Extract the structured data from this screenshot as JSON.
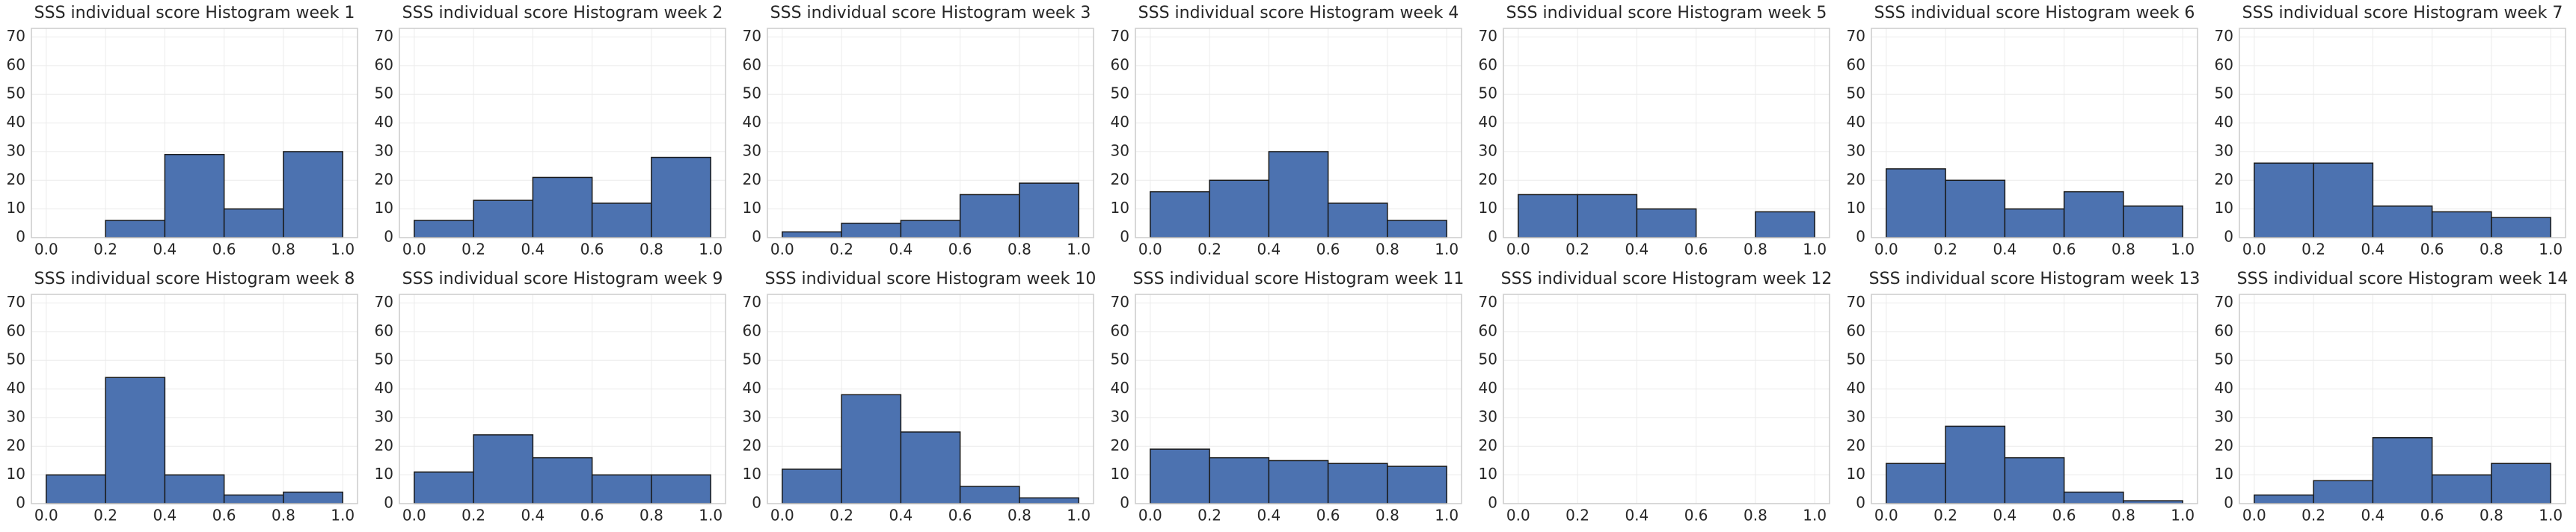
{
  "chart_data": [
    {
      "type": "histogram",
      "title": "SSS individual score Histogram week 1",
      "bins": [
        0,
        0.2,
        0.4,
        0.6,
        0.8,
        1
      ],
      "values": [
        0,
        6,
        29,
        10,
        30
      ],
      "color": "#4c72b0",
      "xlim": [
        -0.05,
        1.05
      ],
      "ylim": [
        0,
        73
      ],
      "xticks": [
        {
          "value": 0,
          "label": "0.0"
        },
        0.2,
        0.4,
        0.6,
        0.8,
        {
          "value": 1,
          "label": "1.0"
        }
      ],
      "yticks": [
        0,
        10,
        20,
        30,
        40,
        50,
        60,
        70
      ],
      "grid": true
    },
    {
      "type": "histogram",
      "title": "SSS individual score Histogram week 2",
      "bins": [
        0,
        0.2,
        0.4,
        0.6,
        0.8,
        1
      ],
      "values": [
        6,
        13,
        21,
        12,
        28
      ],
      "color": "#4c72b0",
      "xlim": [
        -0.05,
        1.05
      ],
      "ylim": [
        0,
        73
      ],
      "xticks": [
        {
          "value": 0,
          "label": "0.0"
        },
        0.2,
        0.4,
        0.6,
        0.8,
        {
          "value": 1,
          "label": "1.0"
        }
      ],
      "yticks": [
        0,
        10,
        20,
        30,
        40,
        50,
        60,
        70
      ],
      "grid": true
    },
    {
      "type": "histogram",
      "title": "SSS individual score Histogram week 3",
      "bins": [
        0,
        0.2,
        0.4,
        0.6,
        0.8,
        1
      ],
      "values": [
        2,
        5,
        6,
        15,
        19
      ],
      "color": "#4c72b0",
      "xlim": [
        -0.05,
        1.05
      ],
      "ylim": [
        0,
        73
      ],
      "xticks": [
        {
          "value": 0,
          "label": "0.0"
        },
        0.2,
        0.4,
        0.6,
        0.8,
        {
          "value": 1,
          "label": "1.0"
        }
      ],
      "yticks": [
        0,
        10,
        20,
        30,
        40,
        50,
        60,
        70
      ],
      "grid": true
    },
    {
      "type": "histogram",
      "title": "SSS individual score Histogram week 4",
      "bins": [
        0,
        0.2,
        0.4,
        0.6,
        0.8,
        1
      ],
      "values": [
        16,
        20,
        30,
        12,
        6
      ],
      "color": "#4c72b0",
      "xlim": [
        -0.05,
        1.05
      ],
      "ylim": [
        0,
        73
      ],
      "xticks": [
        {
          "value": 0,
          "label": "0.0"
        },
        0.2,
        0.4,
        0.6,
        0.8,
        {
          "value": 1,
          "label": "1.0"
        }
      ],
      "yticks": [
        0,
        10,
        20,
        30,
        40,
        50,
        60,
        70
      ],
      "grid": true
    },
    {
      "type": "histogram",
      "title": "SSS individual score Histogram week 5",
      "bins": [
        0,
        0.2,
        0.4,
        0.6,
        0.8,
        1
      ],
      "values": [
        15,
        15,
        10,
        0,
        9
      ],
      "color": "#4c72b0",
      "xlim": [
        -0.05,
        1.05
      ],
      "ylim": [
        0,
        73
      ],
      "xticks": [
        {
          "value": 0,
          "label": "0.0"
        },
        0.2,
        0.4,
        0.6,
        0.8,
        {
          "value": 1,
          "label": "1.0"
        }
      ],
      "yticks": [
        0,
        10,
        20,
        30,
        40,
        50,
        60,
        70
      ],
      "grid": true
    },
    {
      "type": "histogram",
      "title": "SSS individual score Histogram week 6",
      "bins": [
        0,
        0.2,
        0.4,
        0.6,
        0.8,
        1
      ],
      "values": [
        24,
        20,
        10,
        16,
        11
      ],
      "color": "#4c72b0",
      "xlim": [
        -0.05,
        1.05
      ],
      "ylim": [
        0,
        73
      ],
      "xticks": [
        {
          "value": 0,
          "label": "0.0"
        },
        0.2,
        0.4,
        0.6,
        0.8,
        {
          "value": 1,
          "label": "1.0"
        }
      ],
      "yticks": [
        0,
        10,
        20,
        30,
        40,
        50,
        60,
        70
      ],
      "grid": true
    },
    {
      "type": "histogram",
      "title": "SSS individual score Histogram week 7",
      "bins": [
        0,
        0.2,
        0.4,
        0.6,
        0.8,
        1
      ],
      "values": [
        26,
        26,
        11,
        9,
        7
      ],
      "color": "#4c72b0",
      "xlim": [
        -0.05,
        1.05
      ],
      "ylim": [
        0,
        73
      ],
      "xticks": [
        {
          "value": 0,
          "label": "0.0"
        },
        0.2,
        0.4,
        0.6,
        0.8,
        {
          "value": 1,
          "label": "1.0"
        }
      ],
      "yticks": [
        0,
        10,
        20,
        30,
        40,
        50,
        60,
        70
      ],
      "grid": true
    },
    {
      "type": "histogram",
      "title": "SSS individual score Histogram week 8",
      "bins": [
        0,
        0.2,
        0.4,
        0.6,
        0.8,
        1
      ],
      "values": [
        10,
        44,
        10,
        3,
        4
      ],
      "color": "#4c72b0",
      "xlim": [
        -0.05,
        1.05
      ],
      "ylim": [
        0,
        73
      ],
      "xticks": [
        {
          "value": 0,
          "label": "0.0"
        },
        0.2,
        0.4,
        0.6,
        0.8,
        {
          "value": 1,
          "label": "1.0"
        }
      ],
      "yticks": [
        0,
        10,
        20,
        30,
        40,
        50,
        60,
        70
      ],
      "grid": true
    },
    {
      "type": "histogram",
      "title": "SSS individual score Histogram week 9",
      "bins": [
        0,
        0.2,
        0.4,
        0.6,
        0.8,
        1
      ],
      "values": [
        11,
        24,
        16,
        10,
        10
      ],
      "color": "#4c72b0",
      "xlim": [
        -0.05,
        1.05
      ],
      "ylim": [
        0,
        73
      ],
      "xticks": [
        {
          "value": 0,
          "label": "0.0"
        },
        0.2,
        0.4,
        0.6,
        0.8,
        {
          "value": 1,
          "label": "1.0"
        }
      ],
      "yticks": [
        0,
        10,
        20,
        30,
        40,
        50,
        60,
        70
      ],
      "grid": true
    },
    {
      "type": "histogram",
      "title": "SSS individual score Histogram week 10",
      "bins": [
        0,
        0.2,
        0.4,
        0.6,
        0.8,
        1
      ],
      "values": [
        12,
        38,
        25,
        6,
        2
      ],
      "color": "#4c72b0",
      "xlim": [
        -0.05,
        1.05
      ],
      "ylim": [
        0,
        73
      ],
      "xticks": [
        {
          "value": 0,
          "label": "0.0"
        },
        0.2,
        0.4,
        0.6,
        0.8,
        {
          "value": 1,
          "label": "1.0"
        }
      ],
      "yticks": [
        0,
        10,
        20,
        30,
        40,
        50,
        60,
        70
      ],
      "grid": true
    },
    {
      "type": "histogram",
      "title": "SSS individual score Histogram week 11",
      "bins": [
        0,
        0.2,
        0.4,
        0.6,
        0.8,
        1
      ],
      "values": [
        19,
        16,
        15,
        14,
        13
      ],
      "color": "#4c72b0",
      "xlim": [
        -0.05,
        1.05
      ],
      "ylim": [
        0,
        73
      ],
      "xticks": [
        {
          "value": 0,
          "label": "0.0"
        },
        0.2,
        0.4,
        0.6,
        0.8,
        {
          "value": 1,
          "label": "1.0"
        }
      ],
      "yticks": [
        0,
        10,
        20,
        30,
        40,
        50,
        60,
        70
      ],
      "grid": true
    },
    {
      "type": "histogram",
      "title": "SSS individual score Histogram week 12",
      "bins": [
        0,
        0.2,
        0.4,
        0.6,
        0.8,
        1
      ],
      "values": [
        0,
        0,
        0,
        0,
        0
      ],
      "color": "#4c72b0",
      "xlim": [
        -0.05,
        1.05
      ],
      "ylim": [
        0,
        73
      ],
      "xticks": [
        {
          "value": 0,
          "label": "0.0"
        },
        0.2,
        0.4,
        0.6,
        0.8,
        {
          "value": 1,
          "label": "1.0"
        }
      ],
      "yticks": [
        0,
        10,
        20,
        30,
        40,
        50,
        60,
        70
      ],
      "grid": true
    },
    {
      "type": "histogram",
      "title": "SSS individual score Histogram week 13",
      "bins": [
        0,
        0.2,
        0.4,
        0.6,
        0.8,
        1
      ],
      "values": [
        14,
        27,
        16,
        4,
        1
      ],
      "color": "#4c72b0",
      "xlim": [
        -0.05,
        1.05
      ],
      "ylim": [
        0,
        73
      ],
      "xticks": [
        {
          "value": 0,
          "label": "0.0"
        },
        0.2,
        0.4,
        0.6,
        0.8,
        {
          "value": 1,
          "label": "1.0"
        }
      ],
      "yticks": [
        0,
        10,
        20,
        30,
        40,
        50,
        60,
        70
      ],
      "grid": true
    },
    {
      "type": "histogram",
      "title": "SSS individual score Histogram week 14",
      "bins": [
        0,
        0.2,
        0.4,
        0.6,
        0.8,
        1
      ],
      "values": [
        3,
        8,
        23,
        10,
        14
      ],
      "color": "#4c72b0",
      "xlim": [
        -0.05,
        1.05
      ],
      "ylim": [
        0,
        73
      ],
      "xticks": [
        {
          "value": 0,
          "label": "0.0"
        },
        0.2,
        0.4,
        0.6,
        0.8,
        {
          "value": 1,
          "label": "1.0"
        }
      ],
      "yticks": [
        0,
        10,
        20,
        30,
        40,
        50,
        60,
        70
      ],
      "grid": true
    }
  ]
}
